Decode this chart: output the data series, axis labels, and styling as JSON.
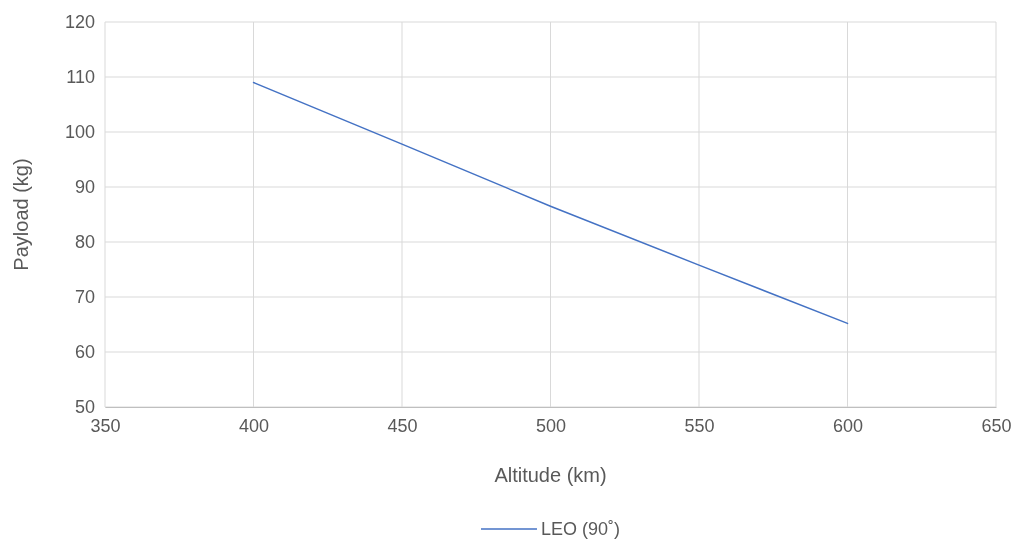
{
  "chart_data": {
    "type": "line",
    "xlabel": "Altitude (km)",
    "ylabel": "Payload (kg)",
    "x": [
      400,
      450,
      500,
      550,
      600
    ],
    "series": [
      {
        "name": "LEO (90˚)",
        "color": "#4472c4",
        "values": [
          109,
          97.8,
          86.5,
          75.8,
          65.2
        ]
      }
    ],
    "xlim": [
      350,
      650
    ],
    "xticks": [
      350,
      400,
      450,
      500,
      550,
      600,
      650
    ],
    "ylim": [
      50,
      120
    ],
    "yticks": [
      50,
      60,
      70,
      80,
      90,
      100,
      110,
      120
    ],
    "grid": true,
    "legend": "bottom",
    "marker": "none",
    "line_style": "solid"
  }
}
